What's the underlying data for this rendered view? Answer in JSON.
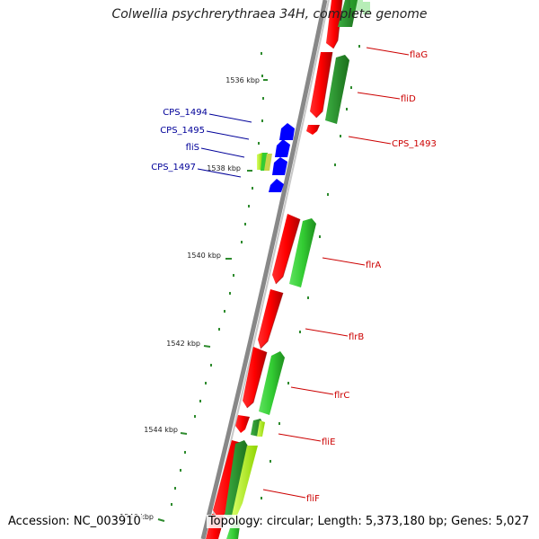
{
  "title": "Colwellia psychrerythraea 34H, complete genome",
  "accession": "Accession: NC_003910",
  "topology": "Topology: circular; Length: 5,373,180 bp; Genes: 5,027",
  "colors": {
    "backbone": "#808080",
    "forward_gene": "#ff0000",
    "reverse_gene": "#33cc33",
    "dark_green_gene": "#228b22",
    "yellow_green_gene": "#adff2f",
    "blue_feature": "#0000ff",
    "tick": "#2e8b2e",
    "label_red": "#cc0000",
    "label_blue": "#000099"
  },
  "ticks": [
    {
      "label": "1536 kbp"
    },
    {
      "label": "1538 kbp"
    },
    {
      "label": "1540 kbp"
    },
    {
      "label": "1542 kbp"
    },
    {
      "label": "1544 kbp"
    },
    {
      "label": "1546 kbp"
    }
  ],
  "right_labels": [
    "flaG",
    "fliD",
    "CPS_1493",
    "flrA",
    "flrB",
    "flrC",
    "fliE",
    "fliF"
  ],
  "left_labels": [
    "CPS_1494",
    "CPS_1495",
    "fliS",
    "CPS_1497"
  ]
}
